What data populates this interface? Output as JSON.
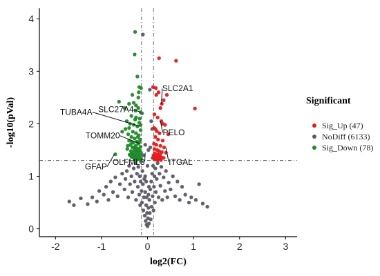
{
  "chart_data": {
    "type": "scatter",
    "title": "",
    "xlabel": "log2(FC)",
    "ylabel": "-log10(pVal)",
    "xlim": [
      -2.35,
      3.25
    ],
    "ylim": [
      -0.15,
      4.2
    ],
    "xticks": [
      -2,
      -1,
      0,
      1,
      2,
      3
    ],
    "yticks": [
      0,
      1,
      2,
      3,
      4
    ],
    "grid": false,
    "legend_position": "right",
    "legend_title": "Significant",
    "thresholds": {
      "fc": [
        -0.13,
        0.13
      ],
      "pval": 1.3
    },
    "colors": {
      "Sig_Up": "#e41a1c",
      "NoDiff": "#5a5a66",
      "Sig_Down": "#1f8a2a"
    },
    "series": [
      {
        "name": "Sig_Up (47)",
        "key": "Sig_Up",
        "points": [
          [
            0.25,
            3.25
          ],
          [
            0.62,
            3.2
          ],
          [
            0.12,
            2.7
          ],
          [
            0.18,
            2.68
          ],
          [
            0.19,
            2.55
          ],
          [
            0.42,
            2.55
          ],
          [
            0.35,
            2.45
          ],
          [
            0.31,
            2.38
          ],
          [
            0.28,
            2.3
          ],
          [
            1.03,
            2.29
          ],
          [
            0.15,
            2.18
          ],
          [
            0.22,
            2.12
          ],
          [
            0.3,
            2.05
          ],
          [
            0.38,
            1.98
          ],
          [
            0.14,
            1.92
          ],
          [
            0.2,
            1.86
          ],
          [
            0.26,
            1.82
          ],
          [
            0.45,
            1.8
          ],
          [
            0.17,
            1.75
          ],
          [
            0.23,
            1.7
          ],
          [
            0.33,
            1.68
          ],
          [
            0.14,
            1.62
          ],
          [
            0.19,
            1.6
          ],
          [
            0.28,
            1.58
          ],
          [
            0.36,
            1.55
          ],
          [
            0.15,
            1.52
          ],
          [
            0.21,
            1.5
          ],
          [
            0.25,
            1.48
          ],
          [
            0.31,
            1.46
          ],
          [
            0.4,
            1.45
          ],
          [
            0.16,
            1.44
          ],
          [
            0.22,
            1.42
          ],
          [
            0.27,
            1.41
          ],
          [
            0.13,
            1.4
          ],
          [
            0.18,
            1.38
          ],
          [
            0.24,
            1.37
          ],
          [
            0.3,
            1.36
          ],
          [
            0.35,
            1.35
          ],
          [
            0.14,
            1.34
          ],
          [
            0.2,
            1.33
          ],
          [
            0.26,
            1.33
          ],
          [
            0.16,
            1.32
          ],
          [
            0.22,
            1.31
          ],
          [
            0.29,
            1.31
          ],
          [
            0.17,
            1.9
          ],
          [
            0.24,
            2.6
          ],
          [
            0.33,
            2.0
          ]
        ]
      },
      {
        "name": "NoDiff (6133)",
        "key": "NoDiff",
        "points": [
          [
            -0.1,
            3.7
          ],
          [
            0.05,
            2.65
          ],
          [
            -0.12,
            2.2
          ],
          [
            0.08,
            2.05
          ],
          [
            0.1,
            1.9
          ],
          [
            -0.05,
            1.6
          ],
          [
            0.06,
            1.55
          ],
          [
            -0.09,
            1.4
          ],
          [
            0.11,
            1.35
          ],
          [
            0.02,
            1.5
          ],
          [
            -1.7,
            0.52
          ],
          [
            -1.6,
            0.45
          ],
          [
            -1.45,
            0.58
          ],
          [
            -1.3,
            0.47
          ],
          [
            -1.2,
            0.6
          ],
          [
            -1.1,
            0.52
          ],
          [
            -1.05,
            0.72
          ],
          [
            -0.95,
            0.65
          ],
          [
            -0.9,
            0.8
          ],
          [
            -0.85,
            0.55
          ],
          [
            -0.8,
            0.9
          ],
          [
            -0.75,
            0.7
          ],
          [
            -0.7,
            0.98
          ],
          [
            -0.65,
            0.62
          ],
          [
            -0.6,
            0.85
          ],
          [
            -0.55,
            1.05
          ],
          [
            -0.5,
            0.75
          ],
          [
            -0.48,
            0.95
          ],
          [
            -0.45,
            1.1
          ],
          [
            -0.42,
            0.6
          ],
          [
            -0.4,
            1.2
          ],
          [
            -0.38,
            0.85
          ],
          [
            -0.35,
            1.0
          ],
          [
            -0.33,
            0.7
          ],
          [
            -0.3,
            1.15
          ],
          [
            -0.28,
            0.9
          ],
          [
            -0.26,
            1.25
          ],
          [
            -0.25,
            0.55
          ],
          [
            -0.23,
            1.05
          ],
          [
            -0.21,
            0.8
          ],
          [
            -0.2,
            1.18
          ],
          [
            -0.18,
            0.65
          ],
          [
            -0.17,
            1.0
          ],
          [
            -0.16,
            0.45
          ],
          [
            -0.15,
            0.9
          ],
          [
            -0.14,
            1.28
          ],
          [
            -0.13,
            0.72
          ],
          [
            -0.12,
            0.5
          ],
          [
            -0.11,
            1.1
          ],
          [
            -0.1,
            0.85
          ],
          [
            -0.09,
            0.35
          ],
          [
            -0.08,
            0.6
          ],
          [
            -0.07,
            0.95
          ],
          [
            -0.06,
            0.25
          ],
          [
            -0.05,
            0.7
          ],
          [
            -0.04,
            0.15
          ],
          [
            -0.03,
            0.45
          ],
          [
            -0.02,
            0.08
          ],
          [
            -0.01,
            0.3
          ],
          [
            0.0,
            0.05
          ],
          [
            0.01,
            0.2
          ],
          [
            0.02,
            0.4
          ],
          [
            0.03,
            0.1
          ],
          [
            0.04,
            0.55
          ],
          [
            0.05,
            0.3
          ],
          [
            0.06,
            0.75
          ],
          [
            0.07,
            0.18
          ],
          [
            0.08,
            0.9
          ],
          [
            0.09,
            0.42
          ],
          [
            0.1,
            1.05
          ],
          [
            0.11,
            0.62
          ],
          [
            0.12,
            1.2
          ],
          [
            0.13,
            0.35
          ],
          [
            0.14,
            0.8
          ],
          [
            0.15,
            1.0
          ],
          [
            0.16,
            0.5
          ],
          [
            0.17,
            1.15
          ],
          [
            0.18,
            0.7
          ],
          [
            0.2,
            0.95
          ],
          [
            0.22,
            1.25
          ],
          [
            0.24,
            0.6
          ],
          [
            0.26,
            1.05
          ],
          [
            0.28,
            0.82
          ],
          [
            0.3,
            1.18
          ],
          [
            0.32,
            0.55
          ],
          [
            0.35,
            0.98
          ],
          [
            0.38,
            0.72
          ],
          [
            0.4,
            1.1
          ],
          [
            0.43,
            0.6
          ],
          [
            0.46,
            0.88
          ],
          [
            0.5,
            0.75
          ],
          [
            0.55,
            1.0
          ],
          [
            0.6,
            0.62
          ],
          [
            0.65,
            0.9
          ],
          [
            0.7,
            0.55
          ],
          [
            0.75,
            0.8
          ],
          [
            0.82,
            0.65
          ],
          [
            0.9,
            0.5
          ],
          [
            0.95,
            0.6
          ],
          [
            1.05,
            0.55
          ],
          [
            1.12,
            0.85
          ],
          [
            1.2,
            0.48
          ],
          [
            1.3,
            0.42
          ],
          [
            -0.02,
            0.6
          ],
          [
            0.03,
            0.8
          ],
          [
            -0.05,
            1.0
          ],
          [
            0.0,
            1.2
          ],
          [
            -0.03,
            0.9
          ],
          [
            0.02,
            0.65
          ]
        ]
      },
      {
        "name": "Sig_Down (78)",
        "key": "Sig_Down",
        "points": [
          [
            -0.27,
            3.75
          ],
          [
            -0.28,
            3.32
          ],
          [
            -0.22,
            2.9
          ],
          [
            -0.18,
            2.7
          ],
          [
            -0.14,
            2.68
          ],
          [
            -0.62,
            2.42
          ],
          [
            -0.4,
            2.38
          ],
          [
            -0.3,
            2.4
          ],
          [
            -0.5,
            2.3
          ],
          [
            -0.2,
            2.3
          ],
          [
            -0.15,
            2.22
          ],
          [
            -0.35,
            2.15
          ],
          [
            -0.25,
            2.12
          ],
          [
            -0.45,
            2.05
          ],
          [
            -0.18,
            2.02
          ],
          [
            -0.3,
            1.98
          ],
          [
            -0.22,
            1.95
          ],
          [
            -0.4,
            1.92
          ],
          [
            -0.15,
            1.88
          ],
          [
            -0.32,
            1.85
          ],
          [
            -0.25,
            1.82
          ],
          [
            -0.42,
            1.8
          ],
          [
            -0.19,
            1.78
          ],
          [
            -0.35,
            1.75
          ],
          [
            -0.28,
            1.72
          ],
          [
            -0.16,
            1.7
          ],
          [
            -0.4,
            1.68
          ],
          [
            -0.23,
            1.66
          ],
          [
            -0.31,
            1.64
          ],
          [
            -0.2,
            1.62
          ],
          [
            -0.37,
            1.6
          ],
          [
            -0.26,
            1.58
          ],
          [
            -0.15,
            1.56
          ],
          [
            -0.33,
            1.55
          ],
          [
            -0.22,
            1.53
          ],
          [
            -0.44,
            1.52
          ],
          [
            -0.18,
            1.5
          ],
          [
            -0.29,
            1.49
          ],
          [
            -0.36,
            1.48
          ],
          [
            -0.24,
            1.46
          ],
          [
            -0.14,
            1.45
          ],
          [
            -0.32,
            1.44
          ],
          [
            -0.2,
            1.43
          ],
          [
            -0.27,
            1.42
          ],
          [
            -0.39,
            1.41
          ],
          [
            -0.16,
            1.4
          ],
          [
            -0.23,
            1.39
          ],
          [
            -0.3,
            1.38
          ],
          [
            -0.35,
            1.37
          ],
          [
            -0.19,
            1.36
          ],
          [
            -0.25,
            1.35
          ],
          [
            -0.14,
            1.34
          ],
          [
            -0.21,
            1.33
          ],
          [
            -0.28,
            1.33
          ],
          [
            -0.17,
            1.32
          ],
          [
            -0.24,
            1.31
          ],
          [
            -0.7,
            1.42
          ],
          [
            -0.15,
            1.31
          ],
          [
            -0.2,
            2.5
          ],
          [
            -0.33,
            2.55
          ],
          [
            -0.25,
            2.35
          ],
          [
            -0.38,
            2.0
          ],
          [
            -0.48,
            1.9
          ],
          [
            -0.55,
            1.85
          ],
          [
            -0.17,
            2.1
          ],
          [
            -0.26,
            2.25
          ],
          [
            -0.21,
            1.75
          ],
          [
            -0.34,
            1.65
          ],
          [
            -0.43,
            1.58
          ],
          [
            -0.29,
            1.55
          ],
          [
            -0.18,
            1.65
          ],
          [
            -0.36,
            1.42
          ],
          [
            -0.22,
            1.47
          ],
          [
            -0.31,
            1.36
          ],
          [
            -0.26,
            1.52
          ],
          [
            -0.15,
            1.98
          ],
          [
            -0.19,
            2.6
          ],
          [
            -0.27,
            2.08
          ]
        ]
      }
    ],
    "annotations": [
      {
        "label": "SLC2A1",
        "x": 0.3,
        "y": 2.38,
        "text_x": 0.32,
        "text_y": 2.62
      },
      {
        "label": "SLC27A4",
        "x": -0.15,
        "y": 2.22,
        "text_x": -0.3,
        "text_y": 2.22
      },
      {
        "label": "TUBA4A",
        "x": -0.15,
        "y": 1.95,
        "text_x": -1.2,
        "text_y": 2.17
      },
      {
        "label": "PELO",
        "x": 0.28,
        "y": 2.05,
        "text_x": 0.33,
        "text_y": 1.78
      },
      {
        "label": "TOMM20",
        "x": -0.16,
        "y": 1.62,
        "text_x": -0.6,
        "text_y": 1.72
      },
      {
        "label": "OLFML3",
        "x": -0.05,
        "y": 1.45,
        "text_x": -0.06,
        "text_y": 1.22
      },
      {
        "label": "ITGAL",
        "x": 0.4,
        "y": 1.55,
        "text_x": 0.46,
        "text_y": 1.22
      },
      {
        "label": "GFAP",
        "x": -0.72,
        "y": 1.42,
        "text_x": -0.88,
        "text_y": 1.13
      }
    ]
  }
}
